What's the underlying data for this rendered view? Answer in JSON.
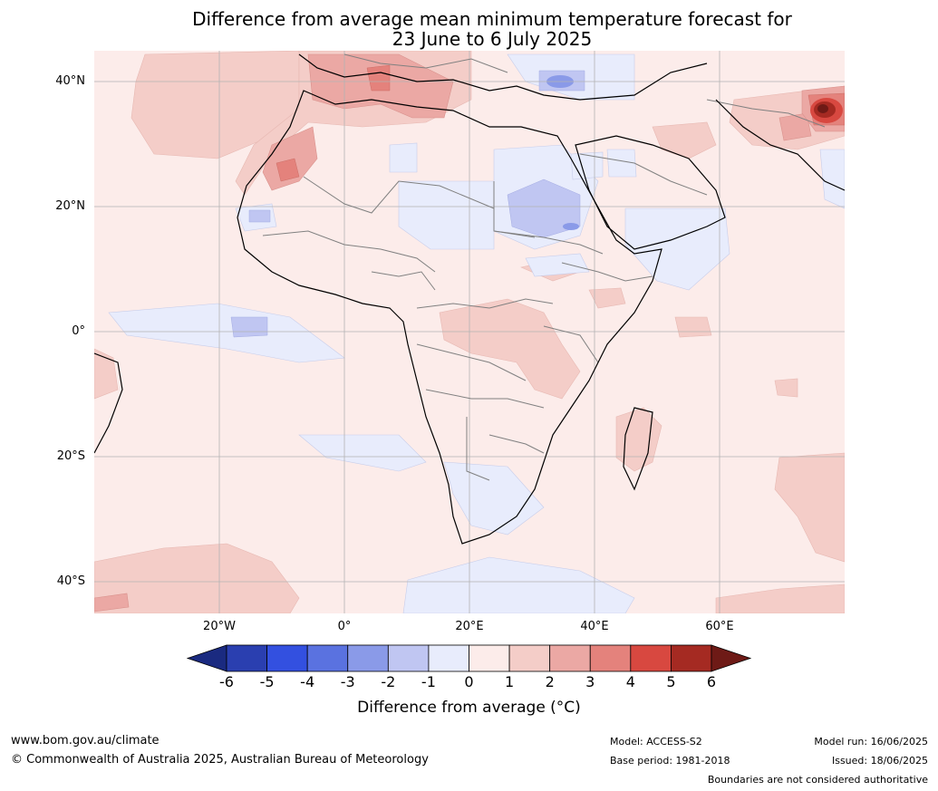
{
  "title": {
    "line1": "Difference from average mean minimum temperature forecast for",
    "line2": "23 June to 6 July 2025"
  },
  "map": {
    "region": "Africa",
    "lat_range": [
      -45,
      45
    ],
    "lon_range": [
      -40,
      80
    ],
    "lat_labels": [
      "40°N",
      "20°N",
      "0°",
      "20°S",
      "40°S"
    ],
    "lon_labels": [
      "20°W",
      "0°",
      "20°E",
      "40°E",
      "60°E"
    ],
    "gridlines": true
  },
  "colorbar": {
    "title": "Difference from average (°C)",
    "ticks": [
      "-6",
      "-5",
      "-4",
      "-3",
      "-2",
      "-1",
      "0",
      "1",
      "2",
      "3",
      "4",
      "5",
      "6"
    ],
    "colors": [
      "#1a2a80",
      "#2a3fb0",
      "#3350e0",
      "#5a72e0",
      "#8a9ae8",
      "#c0c6f2",
      "#e8ecfc",
      "#fcecea",
      "#f4cdc8",
      "#eba8a4",
      "#e4827c",
      "#d84840",
      "#a52a22",
      "#6e1a16"
    ]
  },
  "footer": {
    "website": "www.bom.gov.au/climate",
    "copyright": "© Commonwealth of Australia 2025, Australian Bureau of Meteorology",
    "model": "Model: ACCESS-S2",
    "base_period": "Base period: 1981-2018",
    "model_run": "Model run: 16/06/2025",
    "issued": "Issued: 18/06/2025",
    "disclaimer": "Boundaries are not considered authoritative"
  }
}
